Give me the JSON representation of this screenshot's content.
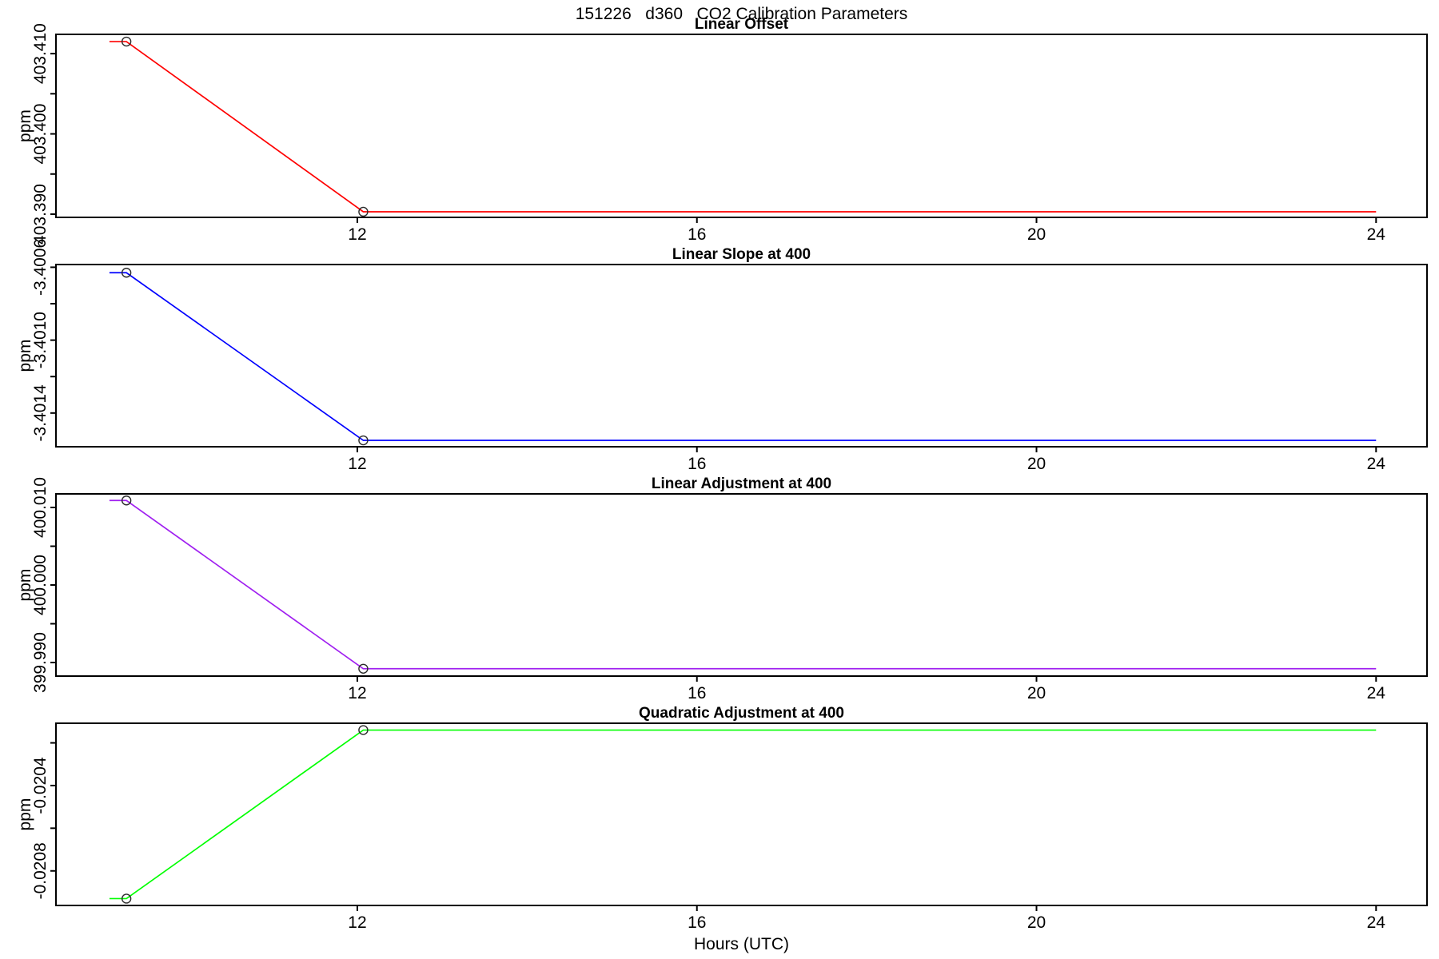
{
  "figure_title": "151226   d360   CO2 Calibration Parameters",
  "xlabel": "Hours (UTC)",
  "chart_data": [
    {
      "type": "line",
      "title": "Linear Offset",
      "ylabel": "ppm",
      "color": "#FF0000",
      "marker": "open-circle",
      "x": [
        9.08,
        9.28,
        12.07,
        24.0
      ],
      "y": [
        403.4115,
        403.4115,
        403.3903,
        403.3903
      ],
      "marker_points": [
        [
          9.28,
          403.4115
        ],
        [
          12.07,
          403.3903
        ]
      ],
      "xlim": [
        8.45,
        24.6
      ],
      "ylim": [
        403.3896,
        403.4124
      ],
      "xticks": [
        {
          "value": 12,
          "label": "12"
        },
        {
          "value": 16,
          "label": "16"
        },
        {
          "value": 20,
          "label": "20"
        },
        {
          "value": 24,
          "label": "24"
        }
      ],
      "yticks": [
        {
          "value": 403.39,
          "label": "403.390"
        },
        {
          "value": 403.395,
          "label": ""
        },
        {
          "value": 403.4,
          "label": "403.400"
        },
        {
          "value": 403.405,
          "label": ""
        },
        {
          "value": 403.41,
          "label": "403.410"
        }
      ],
      "grid": false
    },
    {
      "type": "line",
      "title": "Linear Slope at 400",
      "ylabel": "ppm",
      "color": "#0000FF",
      "marker": "open-circle",
      "x": [
        9.08,
        9.28,
        12.07,
        24.0
      ],
      "y": [
        -3.40063,
        -3.40063,
        -3.40155,
        -3.40155
      ],
      "marker_points": [
        [
          9.28,
          -3.40063
        ],
        [
          12.07,
          -3.40155
        ]
      ],
      "xlim": [
        8.45,
        24.6
      ],
      "ylim": [
        -3.401585,
        -3.400585
      ],
      "xticks": [
        {
          "value": 12,
          "label": "12"
        },
        {
          "value": 16,
          "label": "16"
        },
        {
          "value": 20,
          "label": "20"
        },
        {
          "value": 24,
          "label": "24"
        }
      ],
      "yticks": [
        {
          "value": -3.4014,
          "label": "-3.4014"
        },
        {
          "value": -3.4012,
          "label": ""
        },
        {
          "value": -3.401,
          "label": "-3.4010"
        },
        {
          "value": -3.4008,
          "label": ""
        },
        {
          "value": -3.4006,
          "label": "-3.4006"
        }
      ],
      "grid": false
    },
    {
      "type": "line",
      "title": "Linear Adjustment at 400",
      "ylabel": "ppm",
      "color": "#A020F0",
      "marker": "open-circle",
      "x": [
        9.08,
        9.28,
        12.07,
        24.0
      ],
      "y": [
        400.0109,
        400.0109,
        399.9892,
        399.9892
      ],
      "marker_points": [
        [
          9.28,
          400.0109
        ],
        [
          12.07,
          399.9892
        ]
      ],
      "xlim": [
        8.45,
        24.6
      ],
      "ylim": [
        399.98825,
        400.01175
      ],
      "xticks": [
        {
          "value": 12,
          "label": "12"
        },
        {
          "value": 16,
          "label": "16"
        },
        {
          "value": 20,
          "label": "20"
        },
        {
          "value": 24,
          "label": "24"
        }
      ],
      "yticks": [
        {
          "value": 399.99,
          "label": "399.990"
        },
        {
          "value": 399.995,
          "label": ""
        },
        {
          "value": 400.0,
          "label": "400.000"
        },
        {
          "value": 400.005,
          "label": ""
        },
        {
          "value": 400.01,
          "label": "400.010"
        }
      ],
      "grid": false
    },
    {
      "type": "line",
      "title": "Quadratic Adjustment at 400",
      "ylabel": "ppm",
      "color": "#00FF00",
      "marker": "open-circle",
      "x": [
        9.08,
        9.28,
        12.07,
        24.0
      ],
      "y": [
        -0.02093,
        -0.02093,
        -0.02014,
        -0.02014
      ],
      "marker_points": [
        [
          9.28,
          -0.02093
        ],
        [
          12.07,
          -0.02014
        ]
      ],
      "xlim": [
        8.45,
        24.6
      ],
      "ylim": [
        -0.020962,
        -0.020108
      ],
      "xticks": [
        {
          "value": 12,
          "label": "12"
        },
        {
          "value": 16,
          "label": "16"
        },
        {
          "value": 20,
          "label": "20"
        },
        {
          "value": 24,
          "label": "24"
        }
      ],
      "yticks": [
        {
          "value": -0.0208,
          "label": "-0.0208"
        },
        {
          "value": -0.0206,
          "label": ""
        },
        {
          "value": -0.0204,
          "label": "-0.0204"
        },
        {
          "value": -0.0202,
          "label": ""
        }
      ],
      "grid": false
    }
  ]
}
